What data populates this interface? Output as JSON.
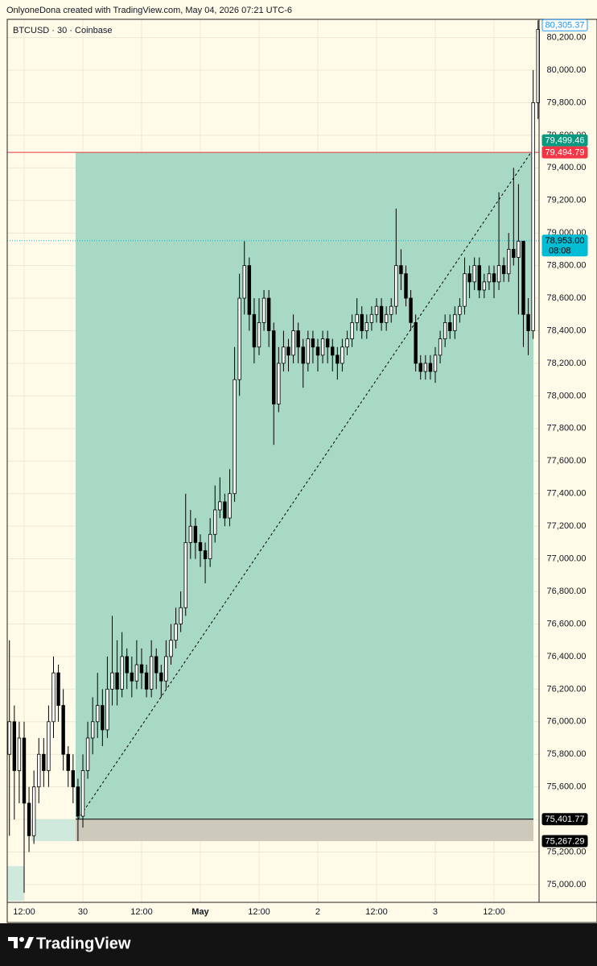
{
  "header": "OnlyoneDona created with TradingView.com, May 04, 2026 07:21 UTC-6",
  "footer": "TradingView",
  "chart_data": {
    "type": "candlestick",
    "title": "BTCUSD · 30 · Coinbase",
    "up_color": "#ffffff",
    "down_color": "#000000",
    "wick_color": "#000000",
    "background": "#fffbe8",
    "grid": true,
    "grid_color": "#ece8d4",
    "categories": [
      null,
      null,
      null,
      "12:00",
      null,
      null,
      null,
      null,
      null,
      null,
      null,
      null,
      null,
      null,
      null,
      "30",
      null,
      null,
      null,
      null,
      null,
      null,
      null,
      null,
      null,
      null,
      null,
      "12:00",
      null,
      null,
      null,
      null,
      null,
      null,
      null,
      null,
      null,
      null,
      null,
      "May",
      null,
      null,
      null,
      null,
      null,
      null,
      null,
      null,
      null,
      null,
      null,
      "12:00",
      null,
      null,
      null,
      null,
      null,
      null,
      null,
      null,
      null,
      null,
      null,
      "2",
      null,
      null,
      null,
      null,
      null,
      null,
      null,
      null,
      null,
      null,
      null,
      "12:00",
      null,
      null,
      null,
      null,
      null,
      null,
      null,
      null,
      null,
      null,
      null,
      "3",
      null,
      null,
      null,
      null,
      null,
      null,
      null,
      null,
      null,
      null,
      null,
      "12:00",
      null,
      null,
      null,
      null,
      null,
      null,
      null,
      null,
      null
    ],
    "ohlc": [
      [
        75800,
        76500,
        75300,
        76000
      ],
      [
        76000,
        76100,
        75400,
        75700
      ],
      [
        75700,
        76000,
        75500,
        75900
      ],
      [
        75900,
        76000,
        74950,
        75500
      ],
      [
        75500,
        75600,
        75200,
        75300
      ],
      [
        75300,
        75700,
        75250,
        75600
      ],
      [
        75600,
        75900,
        75500,
        75800
      ],
      [
        75800,
        75900,
        75600,
        75700
      ],
      [
        75700,
        76100,
        75600,
        76000
      ],
      [
        76000,
        76400,
        75900,
        76300
      ],
      [
        76300,
        76350,
        76000,
        76100
      ],
      [
        76100,
        76200,
        75700,
        75800
      ],
      [
        75800,
        75850,
        75600,
        75700
      ],
      [
        75700,
        75800,
        75500,
        75600
      ],
      [
        75600,
        75650,
        75267.29,
        75420
      ],
      [
        75420,
        75800,
        75350,
        75700
      ],
      [
        75700,
        76000,
        75650,
        75900
      ],
      [
        75900,
        76150,
        75800,
        76000
      ],
      [
        76000,
        76300,
        75900,
        76100
      ],
      [
        76100,
        76200,
        75850,
        75950
      ],
      [
        75950,
        76400,
        75900,
        76200
      ],
      [
        76200,
        76650,
        76100,
        76300
      ],
      [
        76300,
        76500,
        76100,
        76200
      ],
      [
        76200,
        76550,
        76150,
        76400
      ],
      [
        76400,
        76450,
        76200,
        76300
      ],
      [
        76300,
        76400,
        76150,
        76250
      ],
      [
        76250,
        76500,
        76200,
        76350
      ],
      [
        76350,
        76450,
        76200,
        76300
      ],
      [
        76300,
        76350,
        76150,
        76200
      ],
      [
        76200,
        76500,
        76150,
        76400
      ],
      [
        76400,
        76450,
        76200,
        76300
      ],
      [
        76300,
        76350,
        76150,
        76250
      ],
      [
        76250,
        76500,
        76200,
        76400
      ],
      [
        76400,
        76600,
        76350,
        76500
      ],
      [
        76500,
        76700,
        76450,
        76600
      ],
      [
        76600,
        76800,
        76550,
        76700
      ],
      [
        76700,
        77400,
        76650,
        77100
      ],
      [
        77100,
        77300,
        77000,
        77200
      ],
      [
        77200,
        77250,
        77000,
        77100
      ],
      [
        77100,
        77150,
        76950,
        77050
      ],
      [
        77050,
        77100,
        76850,
        77000
      ],
      [
        77000,
        77250,
        76950,
        77150
      ],
      [
        77150,
        77450,
        77100,
        77300
      ],
      [
        77300,
        77500,
        77250,
        77350
      ],
      [
        77350,
        77400,
        77200,
        77250
      ],
      [
        77250,
        77550,
        77200,
        77400
      ],
      [
        77400,
        78300,
        77350,
        78100
      ],
      [
        78100,
        78750,
        78000,
        78600
      ],
      [
        78600,
        78950,
        78500,
        78800
      ],
      [
        78800,
        78850,
        78400,
        78500
      ],
      [
        78500,
        78600,
        78200,
        78300
      ],
      [
        78300,
        78600,
        78250,
        78450
      ],
      [
        78450,
        78650,
        78400,
        78600
      ],
      [
        78600,
        78650,
        78300,
        78400
      ],
      [
        78400,
        78450,
        77700,
        77950
      ],
      [
        77950,
        78300,
        77900,
        78200
      ],
      [
        78200,
        78400,
        78150,
        78300
      ],
      [
        78300,
        78350,
        78150,
        78250
      ],
      [
        78250,
        78500,
        78200,
        78400
      ],
      [
        78400,
        78450,
        78200,
        78300
      ],
      [
        78300,
        78350,
        78050,
        78200
      ],
      [
        78200,
        78400,
        78150,
        78350
      ],
      [
        78350,
        78400,
        78200,
        78300
      ],
      [
        78300,
        78350,
        78150,
        78250
      ],
      [
        78250,
        78400,
        78200,
        78350
      ],
      [
        78350,
        78400,
        78200,
        78300
      ],
      [
        78300,
        78350,
        78150,
        78250
      ],
      [
        78250,
        78300,
        78100,
        78200
      ],
      [
        78200,
        78350,
        78150,
        78300
      ],
      [
        78300,
        78400,
        78250,
        78350
      ],
      [
        78350,
        78500,
        78300,
        78450
      ],
      [
        78450,
        78600,
        78400,
        78500
      ],
      [
        78500,
        78550,
        78350,
        78400
      ],
      [
        78400,
        78500,
        78350,
        78450
      ],
      [
        78450,
        78550,
        78400,
        78500
      ],
      [
        78500,
        78600,
        78450,
        78550
      ],
      [
        78550,
        78600,
        78400,
        78450
      ],
      [
        78450,
        78550,
        78400,
        78500
      ],
      [
        78500,
        78600,
        78450,
        78550
      ],
      [
        78550,
        79150,
        78500,
        78800
      ],
      [
        78800,
        78900,
        78650,
        78750
      ],
      [
        78750,
        78800,
        78550,
        78600
      ],
      [
        78600,
        78650,
        78400,
        78450
      ],
      [
        78450,
        78500,
        78150,
        78200
      ],
      [
        78200,
        78250,
        78100,
        78150
      ],
      [
        78150,
        78250,
        78100,
        78200
      ],
      [
        78200,
        78250,
        78100,
        78150
      ],
      [
        78150,
        78300,
        78080,
        78250
      ],
      [
        78250,
        78400,
        78200,
        78350
      ],
      [
        78350,
        78500,
        78300,
        78450
      ],
      [
        78450,
        78500,
        78350,
        78400
      ],
      [
        78400,
        78550,
        78350,
        78500
      ],
      [
        78500,
        78600,
        78450,
        78550
      ],
      [
        78550,
        78850,
        78500,
        78750
      ],
      [
        78750,
        78800,
        78600,
        78700
      ],
      [
        78700,
        78850,
        78650,
        78800
      ],
      [
        78800,
        78850,
        78600,
        78650
      ],
      [
        78650,
        78750,
        78600,
        78700
      ],
      [
        78700,
        78800,
        78650,
        78750
      ],
      [
        78750,
        78800,
        78600,
        78700
      ],
      [
        78700,
        79250,
        78650,
        78800
      ],
      [
        78800,
        78850,
        78700,
        78750
      ],
      [
        78750,
        79000,
        78700,
        78900
      ],
      [
        78900,
        79400,
        78800,
        78850
      ],
      [
        78850,
        79300,
        78500,
        78950
      ],
      [
        78950,
        78950,
        78300,
        78500
      ],
      [
        78500,
        78600,
        78250,
        78400
      ],
      [
        78400,
        80000,
        78350,
        79800
      ],
      [
        79800,
        80305.37,
        79700,
        80250
      ]
    ],
    "ylim": [
      74891.2,
      80311.6
    ],
    "yticks": [
      {
        "value": 75000,
        "label": "75,000.00"
      },
      {
        "value": 75200,
        "label": "75,200.00"
      },
      {
        "value": 75400,
        "label": "75,400.00"
      },
      {
        "value": 75600,
        "label": "75,600.00"
      },
      {
        "value": 75800,
        "label": "75,800.00"
      },
      {
        "value": 76000,
        "label": "76,000.00"
      },
      {
        "value": 76200,
        "label": "76,200.00"
      },
      {
        "value": 76400,
        "label": "76,400.00"
      },
      {
        "value": 76600,
        "label": "76,600.00"
      },
      {
        "value": 76800,
        "label": "76,800.00"
      },
      {
        "value": 77000,
        "label": "77,000.00"
      },
      {
        "value": 77200,
        "label": "77,200.00"
      },
      {
        "value": 77400,
        "label": "77,400.00"
      },
      {
        "value": 77600,
        "label": "77,600.00"
      },
      {
        "value": 77800,
        "label": "77,800.00"
      },
      {
        "value": 78000,
        "label": "78,000.00"
      },
      {
        "value": 78200,
        "label": "78,200.00"
      },
      {
        "value": 78400,
        "label": "78,400.00"
      },
      {
        "value": 78600,
        "label": "78,600.00"
      },
      {
        "value": 78800,
        "label": "78,800.00"
      },
      {
        "value": 79000,
        "label": "79,000.00"
      },
      {
        "value": 79200,
        "label": "79,200.00"
      },
      {
        "value": 79400,
        "label": "79,400.00"
      },
      {
        "value": 79600,
        "label": "79,600.00"
      },
      {
        "value": 79800,
        "label": "79,800.00"
      },
      {
        "value": 80000,
        "label": "80,000.00"
      },
      {
        "value": 80200,
        "label": "80,200.00"
      }
    ],
    "price_labels": [
      {
        "value": 80305.37,
        "label": "80,305.37",
        "fill": "#ffffff",
        "color": "#2196f3"
      },
      {
        "value": 79499.46,
        "label": "79,499.46",
        "fill": "#089981",
        "color": "#ffffff"
      },
      {
        "value": 79494.79,
        "label": "79,494.79",
        "fill": "#f23645",
        "color": "#ffffff"
      },
      {
        "value": 78953.0,
        "label": "78,953.00",
        "fill": "#00bcd4",
        "color": "#000000"
      },
      {
        "value": 75401.77,
        "label": "75,401.77",
        "fill": "#000000",
        "color": "#ffffff"
      },
      {
        "value": 75267.29,
        "label": "75,267.29",
        "fill": "#000000",
        "color": "#ffffff"
      }
    ],
    "countdown": "08:08",
    "target_color": "#a8d9c5",
    "stop_color": "#cdc9bb"
  }
}
